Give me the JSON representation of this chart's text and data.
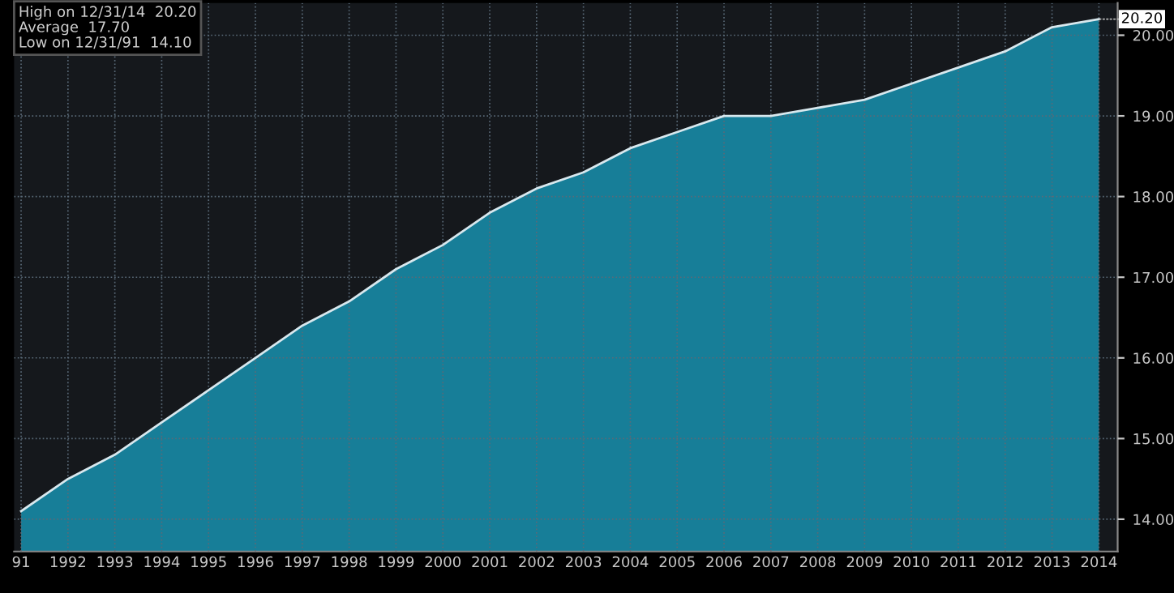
{
  "chart_data": {
    "type": "area",
    "x": [
      1991,
      1992,
      1993,
      1994,
      1995,
      1996,
      1997,
      1998,
      1999,
      2000,
      2001,
      2002,
      2003,
      2004,
      2005,
      2006,
      2007,
      2008,
      2009,
      2010,
      2011,
      2012,
      2013,
      2014
    ],
    "series": [
      {
        "color": "#177e98",
        "values": [
          14.1,
          14.5,
          14.8,
          15.2,
          15.6,
          16.0,
          16.4,
          16.7,
          17.1,
          17.4,
          17.8,
          18.1,
          18.3,
          18.6,
          18.8,
          19.0,
          19.0,
          19.1,
          19.2,
          19.4,
          19.6,
          19.8,
          20.1,
          20.2
        ]
      }
    ],
    "xlim": [
      1990.85,
      2014.4
    ],
    "xticks": [
      {
        "value": 1991,
        "label": "91"
      },
      1992,
      1993,
      1994,
      1995,
      1996,
      1997,
      1998,
      1999,
      2000,
      2001,
      2002,
      2003,
      2004,
      2005,
      2006,
      2007,
      2008,
      2009,
      2010,
      2011,
      2012,
      2013,
      2014
    ],
    "ylim": [
      13.6,
      20.4
    ],
    "yticks": [
      {
        "value": 14,
        "label": "14.00"
      },
      {
        "value": 15,
        "label": "15.00"
      },
      {
        "value": 16,
        "label": "16.00"
      },
      {
        "value": 17,
        "label": "17.00"
      },
      {
        "value": 18,
        "label": "18.00"
      },
      {
        "value": 19,
        "label": "19.00"
      },
      {
        "value": 20,
        "label": "20.00"
      }
    ],
    "grid": true,
    "annotations": [
      "High on 12/31/14  20.20",
      "Average  17.70",
      "Low on 12/31/91  14.10",
      {
        "text": "20.20",
        "x": 2014,
        "y": 20.2
      }
    ]
  }
}
